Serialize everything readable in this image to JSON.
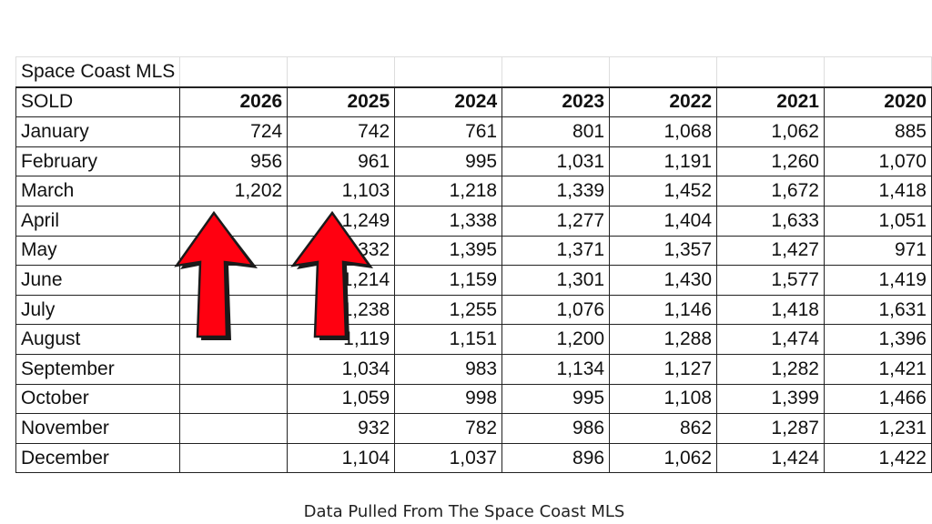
{
  "table": {
    "title": "Space Coast MLS",
    "row_header": "SOLD",
    "years": [
      "2026",
      "2025",
      "2024",
      "2023",
      "2022",
      "2021",
      "2020"
    ],
    "rows": [
      {
        "month": "January",
        "values": [
          "724",
          "742",
          "761",
          "801",
          "1,068",
          "1,062",
          "885"
        ]
      },
      {
        "month": "February",
        "values": [
          "956",
          "961",
          "995",
          "1,031",
          "1,191",
          "1,260",
          "1,070"
        ]
      },
      {
        "month": "March",
        "values": [
          "1,202",
          "1,103",
          "1,218",
          "1,339",
          "1,452",
          "1,672",
          "1,418"
        ]
      },
      {
        "month": "April",
        "values": [
          "",
          "1,249",
          "1,338",
          "1,277",
          "1,404",
          "1,633",
          "1,051"
        ]
      },
      {
        "month": "May",
        "values": [
          "",
          "1,332",
          "1,395",
          "1,371",
          "1,357",
          "1,427",
          "971"
        ]
      },
      {
        "month": "June",
        "values": [
          "",
          "1,214",
          "1,159",
          "1,301",
          "1,430",
          "1,577",
          "1,419"
        ]
      },
      {
        "month": "July",
        "values": [
          "",
          "1,238",
          "1,255",
          "1,076",
          "1,146",
          "1,418",
          "1,631"
        ]
      },
      {
        "month": "August",
        "values": [
          "",
          "1,119",
          "1,151",
          "1,200",
          "1,288",
          "1,474",
          "1,396"
        ]
      },
      {
        "month": "September",
        "values": [
          "",
          "1,034",
          "983",
          "1,134",
          "1,127",
          "1,282",
          "1,421"
        ]
      },
      {
        "month": "October",
        "values": [
          "",
          "1,059",
          "998",
          "995",
          "1,108",
          "1,399",
          "1,466"
        ]
      },
      {
        "month": "November",
        "values": [
          "",
          "932",
          "782",
          "986",
          "862",
          "1,287",
          "1,231"
        ]
      },
      {
        "month": "December",
        "values": [
          "",
          "1,104",
          "1,037",
          "896",
          "1,062",
          "1,424",
          "1,422"
        ]
      }
    ]
  },
  "annotations": {
    "arrow_color": "#ff0000",
    "arrow_icon": "up-arrow-icon"
  },
  "caption": "Data Pulled From The Space Coast MLS"
}
